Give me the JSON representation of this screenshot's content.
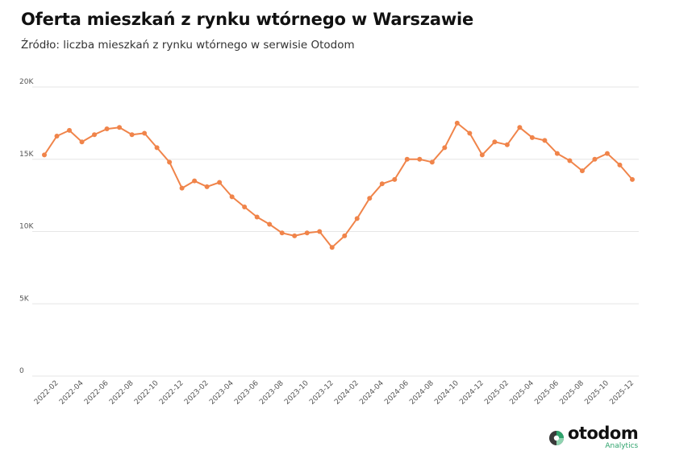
{
  "title": "Oferta mieszkań z rynku wtórnego w Warszawie",
  "subtitle": "Źródło: liczba mieszkań z rynku wtórnego w serwisie Otodom",
  "logo": {
    "name": "otodom",
    "sub": "Analytics"
  },
  "colors": {
    "line": "#f0844a",
    "grid": "#e6e6e6",
    "logo_green": "#2ea36c",
    "logo_dark": "#3a3a3a"
  },
  "chart_data": {
    "type": "line",
    "title": "Oferta mieszkań z rynku wtórnego w Warszawie",
    "ylim": [
      0,
      20000
    ],
    "yticks": [
      0,
      5000,
      10000,
      15000,
      20000
    ],
    "ytick_labels": [
      "0",
      "5K",
      "10K",
      "15K",
      "20K"
    ],
    "grid": true,
    "xtick_labels": [
      "2022-02",
      "2022-04",
      "2022-06",
      "2022-08",
      "2022-10",
      "2022-12",
      "2023-02",
      "2023-04",
      "2023-06",
      "2023-08",
      "2023-10",
      "2023-12",
      "2024-02",
      "2024-04",
      "2024-06",
      "2024-08",
      "2024-10",
      "2024-12",
      "2025-02",
      "2025-04",
      "2025-06",
      "2025-08",
      "2025-10",
      "2025-12"
    ],
    "x": [
      "2022-01",
      "2022-02",
      "2022-03",
      "2022-04",
      "2022-05",
      "2022-06",
      "2022-07",
      "2022-08",
      "2022-09",
      "2022-10",
      "2022-11",
      "2022-12",
      "2023-01",
      "2023-02",
      "2023-03",
      "2023-04",
      "2023-05",
      "2023-06",
      "2023-07",
      "2023-08",
      "2023-09",
      "2023-10",
      "2023-11",
      "2023-12",
      "2024-01",
      "2024-02",
      "2024-03",
      "2024-04",
      "2024-05",
      "2024-06",
      "2024-07",
      "2024-08",
      "2024-09",
      "2024-10",
      "2024-11",
      "2024-12",
      "2025-01",
      "2025-02",
      "2025-03",
      "2025-04",
      "2025-05",
      "2025-06",
      "2025-07",
      "2025-08",
      "2025-09",
      "2025-10",
      "2025-11",
      "2025-12"
    ],
    "series": [
      {
        "values": [
          15300,
          16600,
          17000,
          16200,
          16700,
          17100,
          17200,
          16700,
          16800,
          15800,
          14800,
          13000,
          13500,
          13100,
          13400,
          12400,
          11700,
          11000,
          10500,
          9900,
          9700,
          9900,
          10000,
          8900,
          9700,
          10900,
          12300,
          13300,
          13600,
          15000,
          15000,
          14800,
          15800,
          17500,
          16800,
          15300,
          16200,
          16000,
          17200,
          16500,
          16300,
          15400,
          14900,
          14200,
          15000,
          15400,
          14600,
          13600
        ]
      }
    ]
  }
}
